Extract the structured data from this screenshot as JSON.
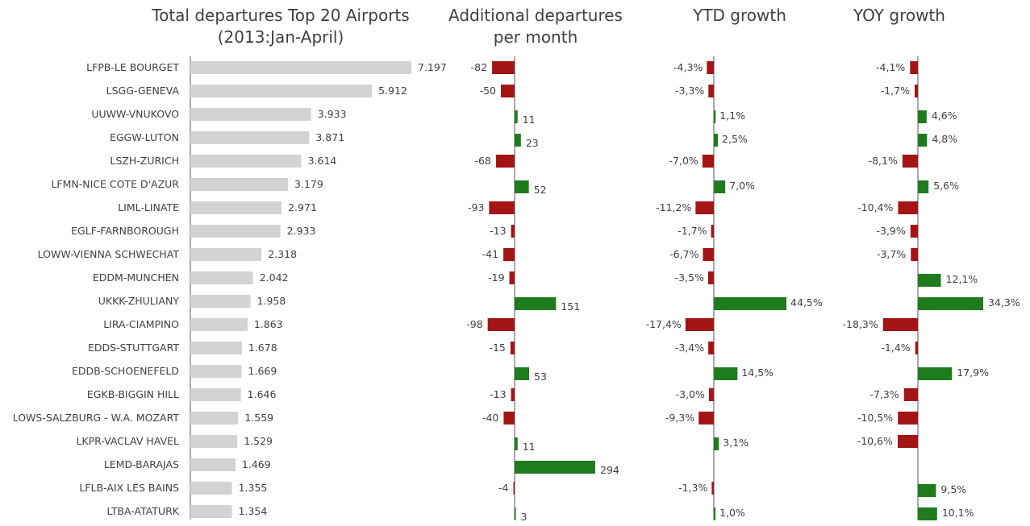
{
  "colors": {
    "bar_total": "#d3d3d3",
    "positive": "#1e7b1e",
    "negative": "#a31515",
    "axis": "#555555",
    "text": "#404040"
  },
  "titles": {
    "total": [
      "Total departures Top 20 Airports",
      "(2013:Jan-April)"
    ],
    "additional": [
      "Additional departures",
      "per month"
    ],
    "ytd": [
      "YTD growth"
    ],
    "yoy": [
      "YOY growth"
    ]
  },
  "chart_data": [
    {
      "type": "bar",
      "orientation": "horizontal",
      "title": "Total departures Top 20 Airports (2013:Jan-April)",
      "categories": [
        "LFPB-LE BOURGET",
        "LSGG-GENEVA",
        "UUWW-VNUKOVO",
        "EGGW-LUTON",
        "LSZH-ZURICH",
        "LFMN-NICE COTE D'AZUR",
        "LIML-LINATE",
        "EGLF-FARNBOROUGH",
        "LOWW-VIENNA SCHWECHAT",
        "EDDM-MUNCHEN",
        "UKKK-ZHULIANY",
        "LIRA-CIAMPINO",
        "EDDS-STUTTGART",
        "EDDB-SCHOENEFELD",
        "EGKB-BIGGIN HILL",
        "LOWS-SALZBURG  - W.A. MOZART",
        "LKPR-VACLAV  HAVEL",
        "LEMD-BARAJAS",
        "LFLB-AIX LES BAINS",
        "LTBA-ATATURK"
      ],
      "values": [
        7197,
        5912,
        3933,
        3871,
        3614,
        3179,
        2971,
        2933,
        2318,
        2042,
        1958,
        1863,
        1678,
        1669,
        1646,
        1559,
        1529,
        1469,
        1355,
        1354
      ],
      "labels": [
        "7.197",
        "5.912",
        "3.933",
        "3.871",
        "3.614",
        "3.179",
        "2.971",
        "2.933",
        "2.318",
        "2.042",
        "1.958",
        "1.863",
        "1.678",
        "1.669",
        "1.646",
        "1.559",
        "1.529",
        "1.469",
        "1.355",
        "1.354"
      ]
    },
    {
      "type": "bar",
      "orientation": "horizontal",
      "title": "Additional departures per month",
      "values": [
        -82,
        -50,
        11,
        23,
        -68,
        52,
        -93,
        -13,
        -41,
        -19,
        151,
        -98,
        -15,
        53,
        -13,
        -40,
        11,
        294,
        -4,
        3
      ],
      "labels": [
        "-82",
        "-50",
        "11",
        "23",
        "-68",
        "52",
        "-93",
        "-13",
        "-41",
        "-19",
        "151",
        "-98",
        "-15",
        "53",
        "-13",
        "-40",
        "11",
        "294",
        "-4",
        "3"
      ]
    },
    {
      "type": "bar",
      "orientation": "horizontal",
      "title": "YTD growth",
      "values": [
        -4.3,
        -3.3,
        1.1,
        2.5,
        -7.0,
        7.0,
        -11.2,
        -1.7,
        -6.7,
        -3.5,
        44.5,
        -17.4,
        -3.4,
        14.5,
        -3.0,
        -9.3,
        3.1,
        null,
        -1.3,
        1.0
      ],
      "labels": [
        "-4,3%",
        "-3,3%",
        "1,1%",
        "2,5%",
        "-7,0%",
        "7,0%",
        "-11,2%",
        "-1,7%",
        "-6,7%",
        "-3,5%",
        "44,5%",
        "-17,4%",
        "-3,4%",
        "14,5%",
        "-3,0%",
        "-9,3%",
        "3,1%",
        "",
        "-1,3%",
        "1,0%"
      ]
    },
    {
      "type": "bar",
      "orientation": "horizontal",
      "title": "YOY growth",
      "values": [
        -4.1,
        -1.7,
        4.6,
        4.8,
        -8.1,
        5.6,
        -10.4,
        -3.9,
        -3.7,
        12.1,
        34.3,
        -18.3,
        -1.4,
        17.9,
        -7.3,
        -10.5,
        -10.6,
        null,
        9.5,
        10.1
      ],
      "labels": [
        "-4,1%",
        "-1,7%",
        "4,6%",
        "4,8%",
        "-8,1%",
        "5,6%",
        "-10,4%",
        "-3,9%",
        "-3,7%",
        "12,1%",
        "34,3%",
        "-18,3%",
        "-1,4%",
        "17,9%",
        "-7,3%",
        "-10,5%",
        "-10,6%",
        "",
        "9,5%",
        "10,1%"
      ]
    }
  ]
}
